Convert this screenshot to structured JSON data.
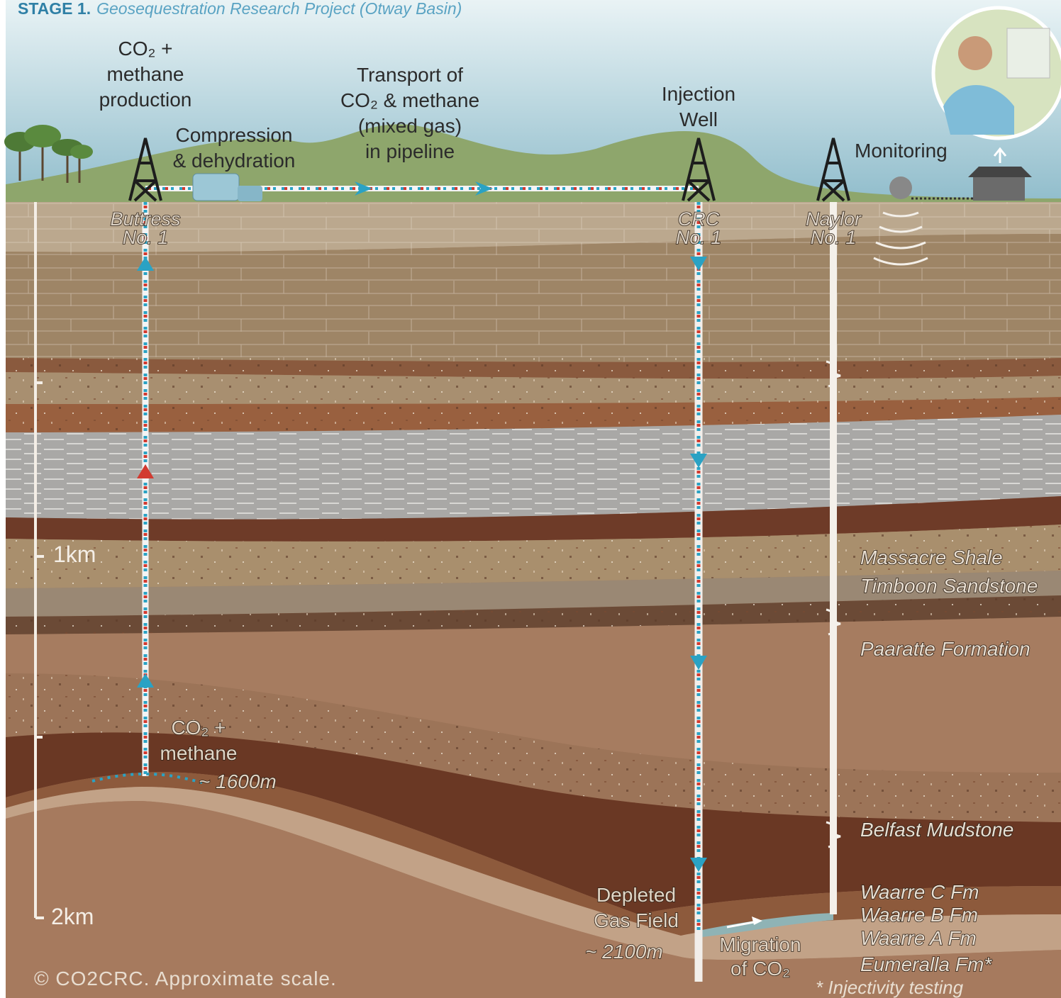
{
  "header": {
    "stage": "STAGE 1.",
    "project": "Geosequestration Research Project (Otway Basin)"
  },
  "surface": {
    "production": [
      "CO₂ +",
      "methane",
      "production"
    ],
    "compression": [
      "Compression",
      "& dehydration"
    ],
    "transport": [
      "Transport of",
      "CO₂ & methane",
      "(mixed gas)",
      "in pipeline"
    ],
    "injection": [
      "Injection",
      "Well"
    ],
    "monitoring": "Monitoring"
  },
  "wells": [
    [
      "Buttress",
      "No. 1"
    ],
    [
      "CRC",
      "No. 1"
    ],
    [
      "Naylor",
      "No. 1"
    ]
  ],
  "scale": [
    "1km",
    "2km"
  ],
  "reservoir": {
    "produced": [
      "CO₂ +",
      "methane"
    ],
    "depth": "~ 1600m"
  },
  "target": {
    "field": [
      "Depleted",
      "Gas Field"
    ],
    "depth": "~ 2100m",
    "migration": [
      "Migration",
      "of CO₂"
    ]
  },
  "formations": [
    "Massacre Shale",
    "Timboon Sandstone",
    "Paaratte Formation",
    "Belfast Mudstone",
    "Waarre C Fm",
    "Waarre B Fm",
    "Waarre A Fm",
    "Eumeralla Fm*"
  ],
  "footnote": "* Injectivity testing",
  "copyright": "© CO2CRC. Approximate scale."
}
